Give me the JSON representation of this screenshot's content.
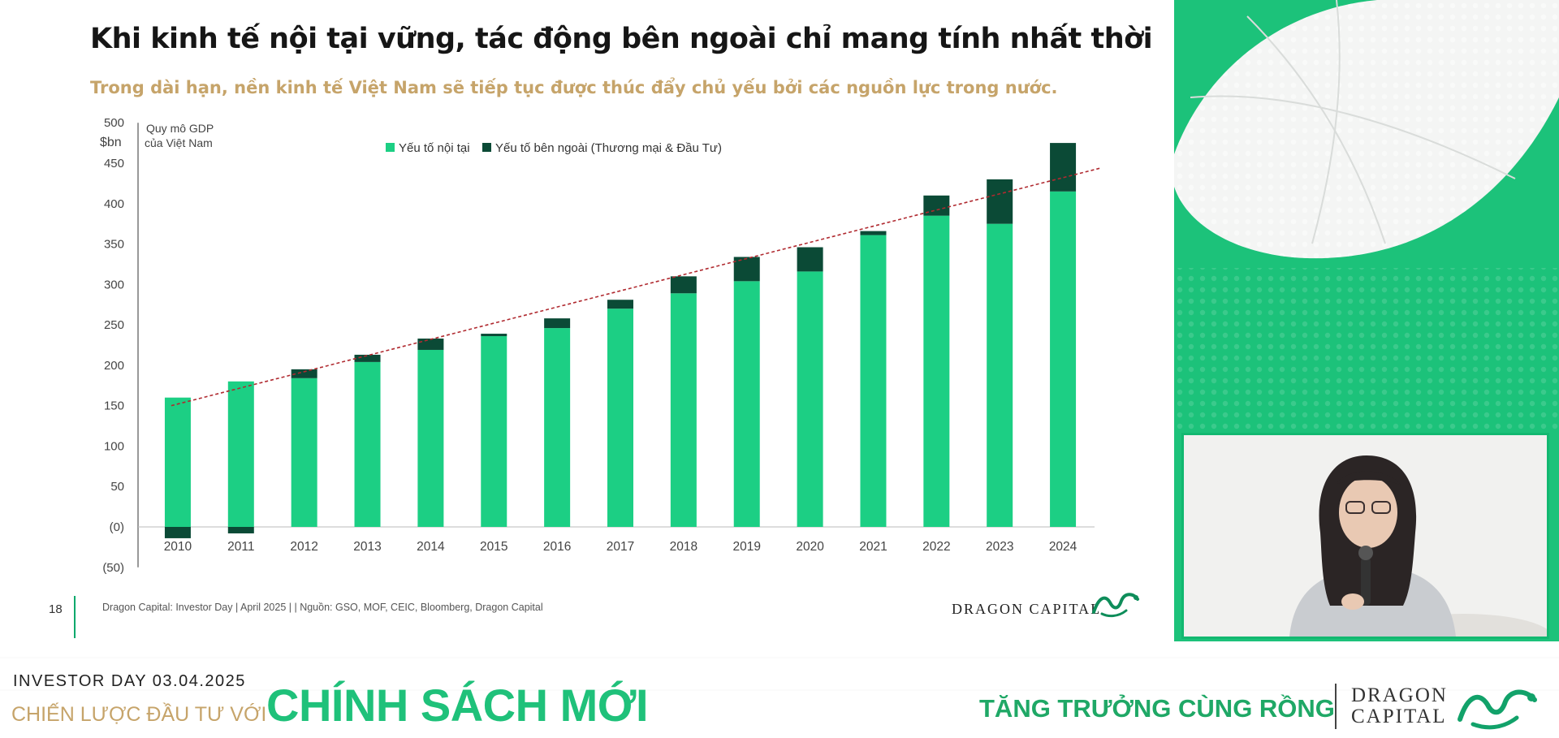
{
  "slide": {
    "title": "Khi kinh tế nội tại vững, tác động bên ngoài chỉ mang tính nhất thời",
    "subtitle": "Trong dài hạn, nền kinh tế Việt Nam sẽ tiếp tục được thúc đẩy chủ yếu bởi các nguồn lực trong nước.",
    "page_number": "18",
    "source_note": "Dragon Capital: Investor Day | April 2025 | | Nguồn: GSO, MOF, CEIC, Bloomberg, Dragon Capital",
    "logo_text": "DRAGON CAPITAL"
  },
  "chart_data": {
    "type": "bar",
    "stacked": true,
    "y_unit_label": "$bn",
    "y_title_lines": [
      "Quy mô GDP",
      "của Việt Nam"
    ],
    "categories": [
      "2010",
      "2011",
      "2012",
      "2013",
      "2014",
      "2015",
      "2016",
      "2017",
      "2018",
      "2019",
      "2020",
      "2021",
      "2022",
      "2023",
      "2024"
    ],
    "series": [
      {
        "name": "Yếu tố nội tại",
        "color": "#1ccf84",
        "values": [
          160,
          180,
          184,
          204,
          219,
          236,
          246,
          270,
          289,
          304,
          316,
          361,
          385,
          375,
          415
        ]
      },
      {
        "name": "Yếu tố bên ngoài (Thương mại & Đầu Tư)",
        "color": "#0b4a36",
        "values": [
          -14,
          -8,
          11,
          9,
          14,
          3,
          12,
          11,
          21,
          30,
          30,
          5,
          25,
          55,
          60
        ]
      }
    ],
    "trendline": {
      "style": "dashed",
      "color": "#b02a30",
      "start": 150,
      "end": 430
    },
    "ylim": [
      -50,
      500
    ],
    "yticks": [
      -50,
      0,
      50,
      100,
      150,
      200,
      250,
      300,
      350,
      400,
      450,
      500
    ],
    "ytick_labels": [
      "(50)",
      "(0)",
      "50",
      "100",
      "150",
      "200",
      "250",
      "300",
      "350",
      "400",
      "450",
      "500"
    ],
    "legend_position": "top-center",
    "grid": false
  },
  "footer": {
    "event": "INVESTOR DAY 03.04.2025",
    "strategy_prefix": "CHIẾN LƯỢC ĐẦU TƯ VỚI",
    "policy": "CHÍNH SÁCH MỚI",
    "tagline": "TĂNG TRƯỞNG CÙNG RỒNG",
    "brand_line1": "DRAGON",
    "brand_line2": "CAPITAL"
  },
  "icons": {
    "dragon_logo": "dragon-logo-icon",
    "presenter": "presenter-video"
  },
  "colors": {
    "accent_green": "#1ccf84",
    "dark_green": "#0b4a36",
    "gold": "#c6a46a"
  }
}
